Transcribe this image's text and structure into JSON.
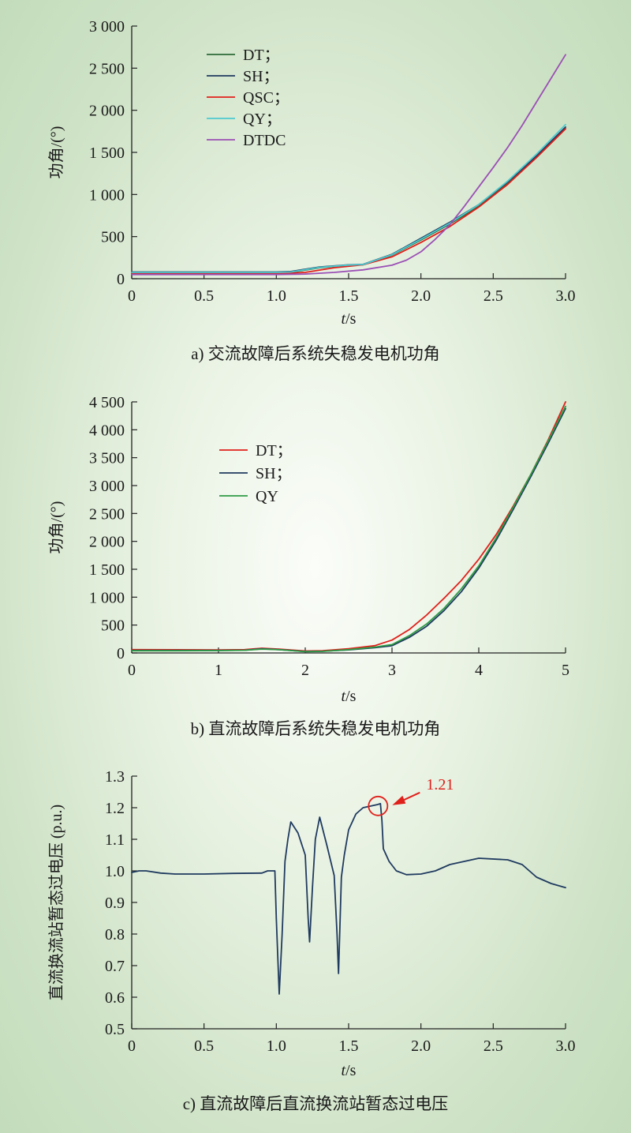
{
  "chart_data": [
    {
      "type": "line",
      "caption": "a) 交流故障后系统失稳发电机功角",
      "xlabel": "t/s",
      "ylabel": "功角/(°)",
      "xlim": [
        0,
        3.0
      ],
      "ylim": [
        0,
        3000
      ],
      "xticks": [
        0,
        0.5,
        1.0,
        1.5,
        2.0,
        2.5,
        3.0
      ],
      "xtick_labels": [
        "0",
        "0.5",
        "1.0",
        "1.5",
        "2.0",
        "2.5",
        "3.0"
      ],
      "yticks": [
        0,
        500,
        1000,
        1500,
        2000,
        2500,
        3000
      ],
      "ytick_labels": [
        "0",
        "500",
        "1 000",
        "1 500",
        "2 000",
        "2 500",
        "3 000"
      ],
      "legend_position": "top-left",
      "series": [
        {
          "name": "DT；",
          "color": "#2e6b3a",
          "points": [
            [
              0,
              70
            ],
            [
              0.5,
              70
            ],
            [
              1.0,
              70
            ],
            [
              1.1,
              75
            ],
            [
              1.3,
              130
            ],
            [
              1.5,
              160
            ],
            [
              1.6,
              165
            ],
            [
              1.8,
              280
            ],
            [
              2.0,
              460
            ],
            [
              2.2,
              650
            ],
            [
              2.4,
              860
            ],
            [
              2.6,
              1130
            ],
            [
              2.8,
              1440
            ],
            [
              3.0,
              1780
            ]
          ]
        },
        {
          "name": "SH；",
          "color": "#1f3a5f",
          "points": [
            [
              0,
              80
            ],
            [
              0.5,
              80
            ],
            [
              1.0,
              80
            ],
            [
              1.1,
              85
            ],
            [
              1.3,
              140
            ],
            [
              1.5,
              165
            ],
            [
              1.6,
              170
            ],
            [
              1.8,
              290
            ],
            [
              2.0,
              480
            ],
            [
              2.2,
              670
            ],
            [
              2.4,
              880
            ],
            [
              2.6,
              1150
            ],
            [
              2.8,
              1460
            ],
            [
              3.0,
              1800
            ]
          ]
        },
        {
          "name": "QSC；",
          "color": "#e0201b",
          "points": [
            [
              0,
              60
            ],
            [
              0.5,
              60
            ],
            [
              1.0,
              60
            ],
            [
              1.2,
              75
            ],
            [
              1.4,
              130
            ],
            [
              1.6,
              165
            ],
            [
              1.8,
              260
            ],
            [
              2.0,
              430
            ],
            [
              2.2,
              620
            ],
            [
              2.4,
              850
            ],
            [
              2.6,
              1120
            ],
            [
              2.8,
              1440
            ],
            [
              3.0,
              1780
            ]
          ]
        },
        {
          "name": "QY；",
          "color": "#4fc9cf",
          "points": [
            [
              0,
              75
            ],
            [
              0.5,
              75
            ],
            [
              1.0,
              75
            ],
            [
              1.1,
              80
            ],
            [
              1.3,
              135
            ],
            [
              1.5,
              162
            ],
            [
              1.6,
              168
            ],
            [
              1.8,
              285
            ],
            [
              2.0,
              470
            ],
            [
              2.2,
              660
            ],
            [
              2.4,
              880
            ],
            [
              2.6,
              1160
            ],
            [
              2.8,
              1480
            ],
            [
              3.0,
              1830
            ]
          ]
        },
        {
          "name": "DTDC",
          "color": "#9b4fb5",
          "points": [
            [
              0,
              50
            ],
            [
              0.5,
              50
            ],
            [
              1.0,
              50
            ],
            [
              1.2,
              55
            ],
            [
              1.4,
              75
            ],
            [
              1.6,
              105
            ],
            [
              1.8,
              160
            ],
            [
              1.9,
              220
            ],
            [
              2.0,
              320
            ],
            [
              2.1,
              470
            ],
            [
              2.2,
              640
            ],
            [
              2.3,
              860
            ],
            [
              2.4,
              1090
            ],
            [
              2.5,
              1320
            ],
            [
              2.6,
              1560
            ],
            [
              2.7,
              1820
            ],
            [
              2.8,
              2100
            ],
            [
              2.9,
              2380
            ],
            [
              3.0,
              2660
            ]
          ]
        }
      ]
    },
    {
      "type": "line",
      "caption": "b) 直流故障后系统失稳发电机功角",
      "xlabel": "t/s",
      "ylabel": "功角/(°)",
      "xlim": [
        0,
        5
      ],
      "ylim": [
        0,
        4500
      ],
      "xticks": [
        0,
        1,
        2,
        3,
        4,
        5
      ],
      "xtick_labels": [
        "0",
        "1",
        "2",
        "3",
        "4",
        "5"
      ],
      "yticks": [
        0,
        500,
        1000,
        1500,
        2000,
        2500,
        3000,
        3500,
        4000,
        4500
      ],
      "ytick_labels": [
        "0",
        "500",
        "1 000",
        "1 500",
        "2 000",
        "2 500",
        "3 000",
        "3 500",
        "4 000",
        "4 500"
      ],
      "legend_position": "top-left",
      "series": [
        {
          "name": "DT；",
          "color": "#e0201b",
          "points": [
            [
              0,
              60
            ],
            [
              0.5,
              58
            ],
            [
              1.0,
              55
            ],
            [
              1.3,
              60
            ],
            [
              1.5,
              85
            ],
            [
              1.7,
              70
            ],
            [
              2.0,
              35
            ],
            [
              2.2,
              40
            ],
            [
              2.5,
              75
            ],
            [
              2.8,
              130
            ],
            [
              3.0,
              230
            ],
            [
              3.2,
              420
            ],
            [
              3.4,
              680
            ],
            [
              3.6,
              980
            ],
            [
              3.8,
              1300
            ],
            [
              4.0,
              1680
            ],
            [
              4.2,
              2120
            ],
            [
              4.4,
              2640
            ],
            [
              4.6,
              3200
            ],
            [
              4.8,
              3820
            ],
            [
              5.0,
              4500
            ]
          ]
        },
        {
          "name": "SH；",
          "color": "#1f3a5f",
          "points": [
            [
              0,
              45
            ],
            [
              0.5,
              45
            ],
            [
              1.0,
              45
            ],
            [
              1.3,
              50
            ],
            [
              1.5,
              75
            ],
            [
              1.7,
              60
            ],
            [
              2.0,
              25
            ],
            [
              2.2,
              30
            ],
            [
              2.5,
              55
            ],
            [
              2.8,
              95
            ],
            [
              3.0,
              130
            ],
            [
              3.2,
              280
            ],
            [
              3.4,
              480
            ],
            [
              3.6,
              760
            ],
            [
              3.8,
              1100
            ],
            [
              4.0,
              1520
            ],
            [
              4.2,
              2020
            ],
            [
              4.4,
              2580
            ],
            [
              4.6,
              3160
            ],
            [
              4.8,
              3760
            ],
            [
              5.0,
              4380
            ]
          ]
        },
        {
          "name": "QY",
          "color": "#2e9a46",
          "points": [
            [
              0,
              40
            ],
            [
              0.5,
              40
            ],
            [
              1.0,
              42
            ],
            [
              1.3,
              48
            ],
            [
              1.5,
              70
            ],
            [
              1.7,
              58
            ],
            [
              2.0,
              22
            ],
            [
              2.2,
              28
            ],
            [
              2.5,
              60
            ],
            [
              2.8,
              105
            ],
            [
              3.0,
              150
            ],
            [
              3.2,
              310
            ],
            [
              3.4,
              520
            ],
            [
              3.6,
              800
            ],
            [
              3.8,
              1150
            ],
            [
              4.0,
              1560
            ],
            [
              4.2,
              2060
            ],
            [
              4.4,
              2620
            ],
            [
              4.6,
              3200
            ],
            [
              4.8,
              3800
            ],
            [
              5.0,
              4420
            ]
          ]
        }
      ]
    },
    {
      "type": "line",
      "caption": "c) 直流故障后直流换流站暂态过电压",
      "xlabel": "t/s",
      "ylabel": "直流换流站暂态过电压 (p.u.)",
      "xlim": [
        0,
        3.0
      ],
      "ylim": [
        0.5,
        1.3
      ],
      "xticks": [
        0,
        0.5,
        1.0,
        1.5,
        2.0,
        2.5,
        3.0
      ],
      "xtick_labels": [
        "0",
        "0.5",
        "1.0",
        "1.5",
        "2.0",
        "2.5",
        "3.0"
      ],
      "yticks": [
        0.5,
        0.6,
        0.7,
        0.8,
        0.9,
        1.0,
        1.1,
        1.2,
        1.3
      ],
      "ytick_labels": [
        "0.5",
        "0.6",
        "0.7",
        "0.8",
        "0.9",
        "1.0",
        "1.1",
        "1.2",
        "1.3"
      ],
      "annotation": {
        "text": "1.21",
        "x": 1.72,
        "y": 1.213,
        "color": "#e0201b"
      },
      "series": [
        {
          "name": "",
          "color": "#1f3a5f",
          "points": [
            [
              0,
              0.995
            ],
            [
              0.05,
              1.0
            ],
            [
              0.1,
              1.0
            ],
            [
              0.2,
              0.993
            ],
            [
              0.3,
              0.99
            ],
            [
              0.5,
              0.99
            ],
            [
              0.7,
              0.992
            ],
            [
              0.9,
              0.993
            ],
            [
              0.94,
              1.0
            ],
            [
              0.99,
              1.0
            ],
            [
              1.0,
              0.85
            ],
            [
              1.02,
              0.61
            ],
            [
              1.04,
              0.8
            ],
            [
              1.06,
              1.03
            ],
            [
              1.08,
              1.1
            ],
            [
              1.1,
              1.155
            ],
            [
              1.15,
              1.12
            ],
            [
              1.2,
              1.05
            ],
            [
              1.22,
              0.85
            ],
            [
              1.23,
              0.775
            ],
            [
              1.25,
              0.95
            ],
            [
              1.27,
              1.1
            ],
            [
              1.3,
              1.17
            ],
            [
              1.35,
              1.08
            ],
            [
              1.4,
              0.985
            ],
            [
              1.42,
              0.8
            ],
            [
              1.43,
              0.675
            ],
            [
              1.45,
              0.98
            ],
            [
              1.47,
              1.05
            ],
            [
              1.5,
              1.13
            ],
            [
              1.55,
              1.18
            ],
            [
              1.6,
              1.2
            ],
            [
              1.7,
              1.21
            ],
            [
              1.72,
              1.213
            ],
            [
              1.73,
              1.16
            ],
            [
              1.74,
              1.07
            ],
            [
              1.78,
              1.03
            ],
            [
              1.83,
              1.0
            ],
            [
              1.9,
              0.988
            ],
            [
              2.0,
              0.99
            ],
            [
              2.1,
              1.0
            ],
            [
              2.2,
              1.02
            ],
            [
              2.4,
              1.04
            ],
            [
              2.6,
              1.035
            ],
            [
              2.7,
              1.02
            ],
            [
              2.8,
              0.98
            ],
            [
              2.9,
              0.96
            ],
            [
              3.0,
              0.947
            ]
          ]
        }
      ]
    }
  ]
}
